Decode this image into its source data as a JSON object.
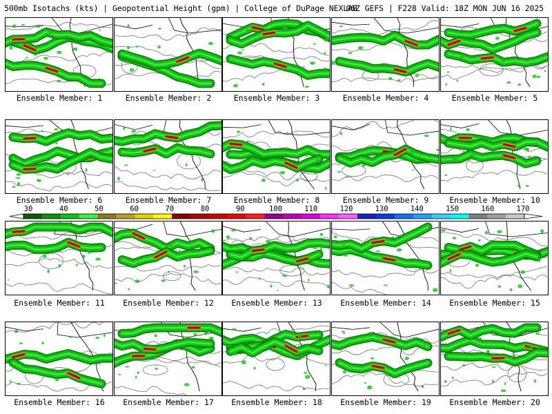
{
  "header": {
    "left": "500mb Isotachs (kts) | Geopotential Height (gpm) | College of DuPage NEXLAB",
    "right": "06Z GEFS | F228 Valid: 18Z MON JUN 16 2025"
  },
  "members": [
    "Ensemble Member: 1",
    "Ensemble Member: 2",
    "Ensemble Member: 3",
    "Ensemble Member: 4",
    "Ensemble Member: 5",
    "Ensemble Member: 6",
    "Ensemble Member: 7",
    "Ensemble Member: 8",
    "Ensemble Member: 9",
    "Ensemble Member: 10",
    "Ensemble Member: 11",
    "Ensemble Member: 12",
    "Ensemble Member: 13",
    "Ensemble Member: 14",
    "Ensemble Member: 15",
    "Ensemble Member: 16",
    "Ensemble Member: 17",
    "Ensemble Member: 18",
    "Ensemble Member: 19",
    "Ensemble Member: 20"
  ],
  "colorbar": {
    "labels": [
      "30",
      "40",
      "50",
      "60",
      "70",
      "80",
      "90",
      "100",
      "110",
      "120",
      "130",
      "140",
      "150",
      "160",
      "170"
    ],
    "colors": [
      "#0a5a0a",
      "#0f8f0f",
      "#15c015",
      "#3cf03c",
      "#8c7a1a",
      "#b8a020",
      "#e0d000",
      "#ffff00",
      "#8b0000",
      "#b00000",
      "#d00000",
      "#f00000",
      "#ff2020",
      "#9a0090",
      "#c000c0",
      "#e000e0",
      "#ff30ff",
      "#ff60ff",
      "#2020c0",
      "#0040e0",
      "#1070ff",
      "#20a0ff",
      "#40c8ff",
      "#00ffff",
      "#808080",
      "#a0a0a0",
      "#c8c8c8"
    ]
  }
}
